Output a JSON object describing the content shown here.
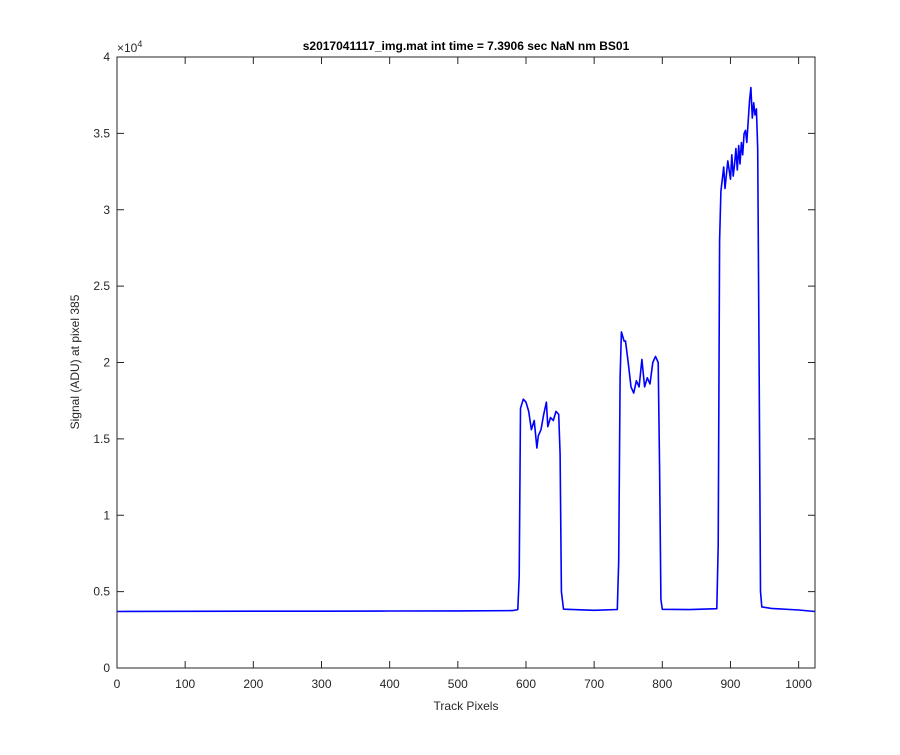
{
  "chart_data": {
    "type": "line",
    "title": "s2017041117_img.mat int time = 7.3906 sec  NaN nm BS01",
    "xlabel": "Track Pixels",
    "ylabel": "Signal (ADU) at pixel 385",
    "y_exponent_label": "×10",
    "y_exponent_power": "4",
    "xlim": [
      0,
      1024
    ],
    "ylim": [
      0,
      4
    ],
    "y_scale_factor": 10000,
    "xticks": [
      0,
      100,
      200,
      300,
      400,
      500,
      600,
      700,
      800,
      900,
      1000
    ],
    "xtick_labels": [
      "0",
      "100",
      "200",
      "300",
      "400",
      "500",
      "600",
      "700",
      "800",
      "900",
      "1000"
    ],
    "yticks": [
      0,
      0.5,
      1,
      1.5,
      2,
      2.5,
      3,
      3.5,
      4
    ],
    "ytick_labels": [
      "0",
      "0.5",
      "1",
      "1.5",
      "2",
      "2.5",
      "3",
      "3.5",
      "4"
    ],
    "grid": false,
    "line_color": "#0000ff",
    "series": [
      {
        "x": [
          0,
          100,
          200,
          300,
          400,
          500,
          580,
          588,
          590,
          592,
          596,
          600,
          604,
          608,
          612,
          616,
          618,
          622,
          626,
          630,
          632,
          636,
          640,
          644,
          648,
          650,
          652,
          655,
          700,
          734,
          736,
          738,
          740,
          744,
          746,
          750,
          754,
          758,
          762,
          766,
          770,
          774,
          778,
          782,
          786,
          790,
          794,
          796,
          798,
          800,
          840,
          880,
          882,
          884,
          886,
          888,
          890,
          892,
          896,
          900,
          902,
          904,
          906,
          908,
          910,
          912,
          914,
          916,
          918,
          920,
          922,
          924,
          926,
          928,
          930,
          932,
          934,
          936,
          938,
          940,
          942,
          944,
          946,
          960,
          1000,
          1024
        ],
        "y": [
          0.37,
          0.371,
          0.372,
          0.372,
          0.373,
          0.374,
          0.376,
          0.382,
          0.6,
          1.7,
          1.76,
          1.74,
          1.68,
          1.56,
          1.62,
          1.44,
          1.52,
          1.56,
          1.66,
          1.74,
          1.58,
          1.64,
          1.62,
          1.68,
          1.66,
          1.4,
          0.5,
          0.385,
          0.378,
          0.383,
          0.7,
          1.9,
          2.2,
          2.14,
          2.14,
          2.0,
          1.84,
          1.8,
          1.88,
          1.84,
          2.02,
          1.84,
          1.9,
          1.86,
          2.0,
          2.04,
          2.0,
          1.3,
          0.45,
          0.384,
          0.382,
          0.388,
          0.8,
          2.8,
          3.12,
          3.2,
          3.28,
          3.14,
          3.32,
          3.2,
          3.36,
          3.22,
          3.3,
          3.4,
          3.26,
          3.42,
          3.3,
          3.44,
          3.36,
          3.5,
          3.52,
          3.44,
          3.58,
          3.72,
          3.8,
          3.6,
          3.7,
          3.62,
          3.66,
          3.4,
          2.0,
          0.5,
          0.4,
          0.39,
          0.38,
          0.37
        ]
      }
    ]
  }
}
